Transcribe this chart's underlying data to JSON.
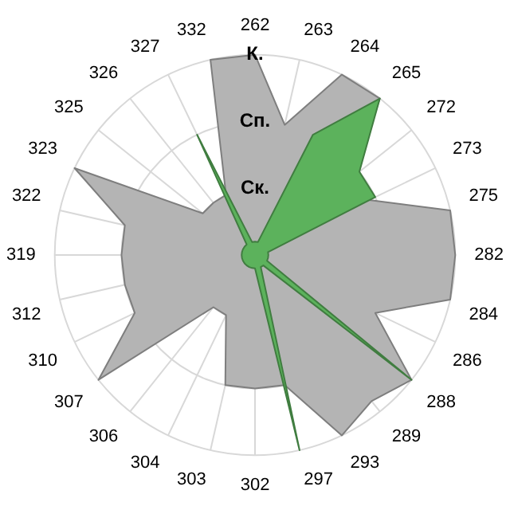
{
  "chart_data": {
    "type": "radar",
    "categories": [
      "262",
      "263",
      "264",
      "265",
      "272",
      "273",
      "275",
      "282",
      "284",
      "286",
      "288",
      "289",
      "293",
      "297",
      "302",
      "303",
      "304",
      "306",
      "307",
      "310",
      "312",
      "319",
      "322",
      "323",
      "325",
      "326",
      "327",
      "332"
    ],
    "series": [
      {
        "color": "#b4b4b4",
        "values": [
          3,
          2,
          3,
          3,
          1.9,
          1.9,
          3,
          3,
          3,
          2,
          3,
          2.8,
          3,
          2,
          2,
          2,
          1,
          1,
          3,
          2,
          2,
          2,
          2,
          3,
          1,
          1,
          1,
          3
        ]
      },
      {
        "color": "#5cb25c",
        "values": [
          0.2,
          0.2,
          2,
          3,
          2,
          2,
          0.2,
          0.2,
          0.2,
          0.2,
          3,
          0.2,
          0.2,
          3,
          0.2,
          0.2,
          0.2,
          0.2,
          0.2,
          0.2,
          0.2,
          0.2,
          0.2,
          0.2,
          0.2,
          0.2,
          2,
          0.2
        ]
      }
    ],
    "ylim": [
      0,
      3
    ],
    "yticks": [
      {
        "value": 1,
        "label": "Ск."
      },
      {
        "value": 2,
        "label": "Сп."
      },
      {
        "value": 3,
        "label": "К."
      }
    ],
    "grid": true
  }
}
